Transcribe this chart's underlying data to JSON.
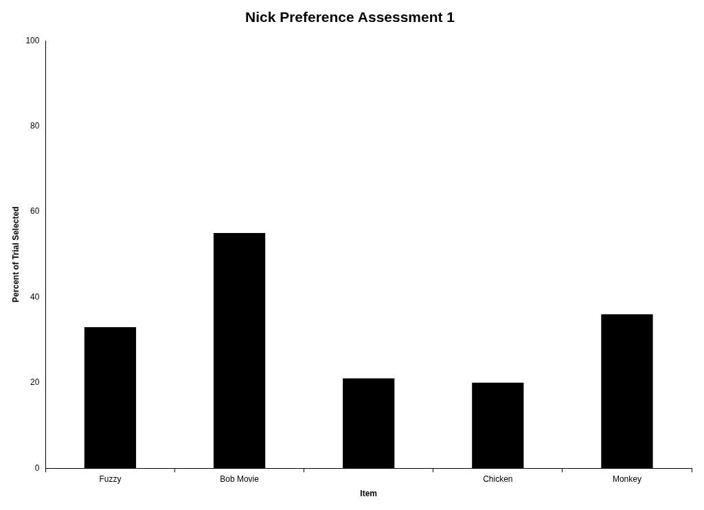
{
  "chart_data": {
    "type": "bar",
    "title": "Nick Preference Assessment 1",
    "xlabel": "Item",
    "ylabel": "Percent of Trial Selected",
    "categories": [
      "Fuzzy",
      "Bob Movie",
      null,
      "Chicken",
      "Monkey"
    ],
    "values": [
      33,
      55,
      21,
      20,
      36
    ],
    "color": "#000000",
    "ylim": [
      0,
      100
    ],
    "yticks": [
      0,
      20,
      40,
      60,
      80,
      100
    ],
    "grid": false,
    "legend": false
  }
}
